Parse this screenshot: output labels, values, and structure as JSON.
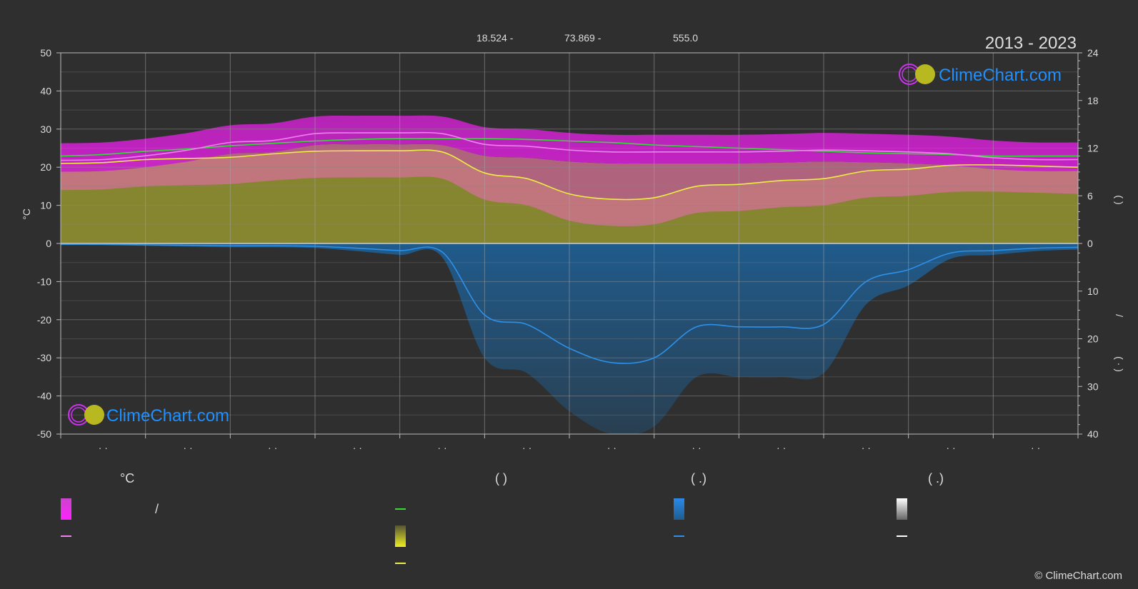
{
  "header": {
    "period": "2013 - 2023",
    "latitude": "18.524 -",
    "longitude": "73.869 -",
    "elevation": "555.0"
  },
  "brand": {
    "name": "ClimeChart.com",
    "copyright": "© ClimeChart.com"
  },
  "chart_data": {
    "type": "line",
    "left_axis": {
      "label": "°C",
      "range": [
        -50,
        50
      ],
      "ticks": [
        "50",
        "40",
        "30",
        "20",
        "10",
        "0",
        "-10",
        "-20",
        "-30",
        "-40",
        "-50"
      ]
    },
    "right_axis_top": {
      "range": [
        0,
        24
      ],
      "ticks": [
        "24",
        "18",
        "12",
        "6",
        "0"
      ],
      "label": "(   )"
    },
    "right_axis_bottom": {
      "range": [
        0,
        40
      ],
      "ticks": [
        "0",
        "10",
        "20",
        "30",
        "40"
      ],
      "label": "/",
      "label2": "( · )"
    },
    "x_tick_labels": [
      "· ·",
      "· ·",
      "· ·",
      "· ·",
      "· ·",
      "· ·",
      "· ·",
      "· ·",
      "· ·",
      "· ·",
      "· ·",
      "· ·"
    ],
    "x": [
      0,
      0.5,
      1,
      1.5,
      2,
      2.5,
      3,
      3.5,
      4,
      4.5,
      5,
      5.5,
      6,
      6.5,
      7,
      7.5,
      8,
      8.5,
      9,
      9.5,
      10,
      10.5,
      11,
      11.5,
      12
    ],
    "series": [
      {
        "key": "mean_max",
        "values": [
          21.8,
          22.0,
          23.0,
          24.5,
          26.5,
          27.0,
          28.8,
          29.0,
          29.0,
          28.8,
          26.0,
          25.5,
          24.5,
          24.0,
          24.0,
          24.0,
          24.0,
          24.2,
          24.5,
          24.3,
          24.0,
          23.5,
          22.5,
          22.0,
          22.0
        ],
        "color": "#ee82ee"
      },
      {
        "key": "sunshine",
        "values": [
          11.0,
          11.2,
          11.6,
          11.9,
          12.3,
          12.6,
          12.9,
          13.1,
          13.2,
          13.2,
          13.2,
          13.1,
          12.9,
          12.7,
          12.4,
          12.2,
          12.0,
          11.8,
          11.6,
          11.4,
          11.3,
          11.2,
          11.0,
          11.0,
          11.0
        ],
        "color": "#33dd33"
      },
      {
        "key": "mean_temp",
        "values": [
          21.0,
          21.2,
          22.0,
          22.3,
          22.6,
          23.5,
          24.2,
          24.3,
          24.3,
          24.0,
          18.5,
          17.0,
          13.0,
          11.6,
          12.0,
          15.0,
          15.5,
          16.5,
          17.0,
          19.0,
          19.5,
          20.5,
          20.6,
          20.3,
          20.0
        ],
        "color": "#eeee44"
      },
      {
        "key": "precipitation",
        "values": [
          0.2,
          0.2,
          0.3,
          0.4,
          0.5,
          0.5,
          0.6,
          1.0,
          1.5,
          1.8,
          15.0,
          17.0,
          22.0,
          25.0,
          24.0,
          17.5,
          17.5,
          17.5,
          17.0,
          8.0,
          5.5,
          2.0,
          1.5,
          1.0,
          0.8
        ],
        "color": "#2e90e8"
      }
    ],
    "bands": {
      "max_band_color": "#cc22cc",
      "mean_band_color": "#d07090",
      "sunshine_band_color": "#8a8a30",
      "precip_band_color": "#1f5d90"
    },
    "grid": true
  },
  "legend": {
    "columns": [
      {
        "heading": "°C",
        "items": [
          {
            "icon": "gradient-box",
            "color_top": "#cc44cc",
            "color_bottom": "#ff22ff",
            "label": "/"
          },
          {
            "icon": "line",
            "color": "#ee82ee",
            "label": ""
          }
        ]
      },
      {
        "heading": "(          )",
        "items": [
          {
            "icon": "line",
            "color": "#33dd33",
            "label": ""
          },
          {
            "icon": "gradient-box",
            "color_top": "#555533",
            "color_bottom": "#eeee22",
            "label": ""
          },
          {
            "icon": "line",
            "color": "#eeee44",
            "label": ""
          }
        ]
      },
      {
        "heading": "(   .)",
        "items": [
          {
            "icon": "gradient-box",
            "color_top": "#2a8ae8",
            "color_bottom": "#1f5d90",
            "label": ""
          },
          {
            "icon": "line",
            "color": "#2e90e8",
            "label": ""
          }
        ]
      },
      {
        "heading": "(   .)",
        "items": [
          {
            "icon": "gradient-box",
            "color_top": "#ffffff",
            "color_bottom": "#666666",
            "label": ""
          },
          {
            "icon": "line",
            "color": "#ffffff",
            "label": ""
          }
        ]
      }
    ]
  }
}
